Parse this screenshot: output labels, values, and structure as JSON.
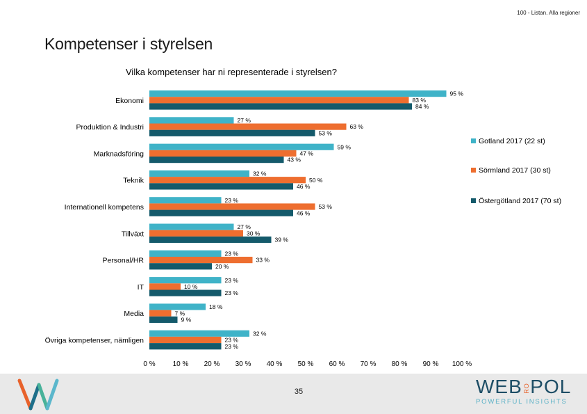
{
  "page": {
    "top_note": "100 - Listan. Alla regioner",
    "title": "Kompetenser i styrelsen",
    "page_number": "35",
    "brand_name": "WEB",
    "brand_mark": "RO",
    "brand_name_2": "POL",
    "brand_tagline": "POWERFUL INSIGHTS"
  },
  "chart_data": {
    "type": "bar",
    "orientation": "horizontal",
    "title": "Vilka kompetenser har ni representerade i styrelsen?",
    "categories": [
      "Ekonomi",
      "Produktion & Industri",
      "Marknadsföring",
      "Teknik",
      "Internationell kompetens",
      "Tillväxt",
      "Personal/HR",
      "IT",
      "Media",
      "Övriga kompetenser, nämligen"
    ],
    "series": [
      {
        "name": "Gotland 2017 (22 st)",
        "color": "#3fb3c8",
        "values": [
          95,
          27,
          59,
          32,
          23,
          27,
          23,
          23,
          18,
          32
        ]
      },
      {
        "name": "Sörmland 2017 (30 st)",
        "color": "#ee6e2f",
        "values": [
          83,
          63,
          47,
          50,
          53,
          30,
          33,
          10,
          7,
          23
        ]
      },
      {
        "name": "Östergötland 2017 (70 st)",
        "color": "#145a6b",
        "values": [
          84,
          53,
          43,
          46,
          46,
          39,
          20,
          23,
          9,
          23
        ]
      }
    ],
    "value_suffix": " %",
    "xlim": [
      0,
      100
    ],
    "xticks": [
      "0 %",
      "10 %",
      "20 %",
      "30 %",
      "40 %",
      "50 %",
      "60 %",
      "70 %",
      "80 %",
      "90 %",
      "100 %"
    ],
    "legend_position": "right",
    "grid": false
  }
}
